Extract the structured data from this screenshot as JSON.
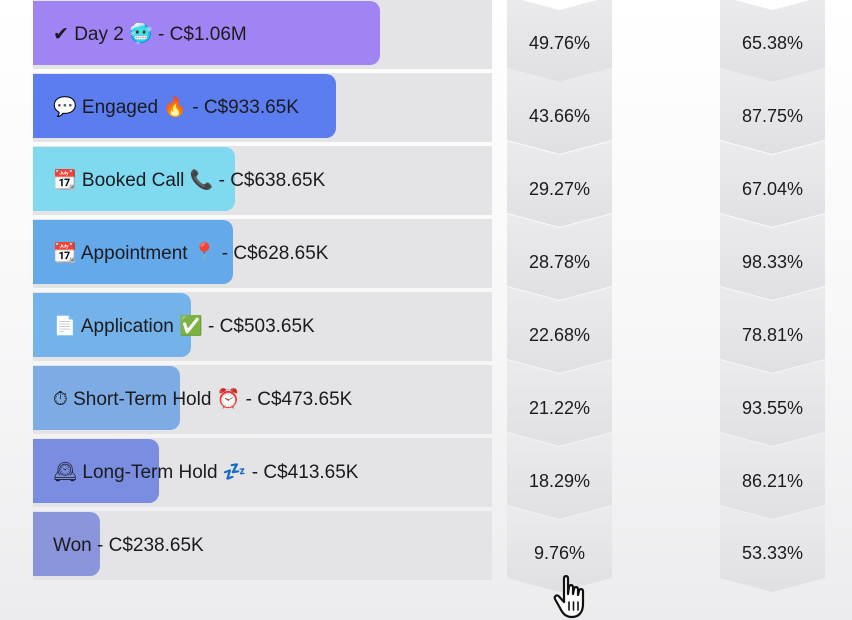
{
  "funnel": {
    "stages": [
      {
        "label": "✔ Day 2 🥶 - C$1.06M",
        "bar_fraction": 0.755,
        "color": "#a184f3"
      },
      {
        "label": "💬 Engaged 🔥 - C$933.65K",
        "bar_fraction": 0.66,
        "color": "#5b7df0"
      },
      {
        "label": "📆 Booked Call 📞 - C$638.65K",
        "bar_fraction": 0.44,
        "color": "#7fd9ef"
      },
      {
        "label": "📆 Appointment 📍 - C$628.65K",
        "bar_fraction": 0.435,
        "color": "#64a9ea"
      },
      {
        "label": "📄 Application ✅ - C$503.65K",
        "bar_fraction": 0.345,
        "color": "#73b3e9"
      },
      {
        "label": "⏱ Short-Term Hold ⏰ - C$473.65K",
        "bar_fraction": 0.32,
        "color": "#7dabe4"
      },
      {
        "label": "🕰 Long-Term Hold 💤 - C$413.65K",
        "bar_fraction": 0.275,
        "color": "#7b8de0"
      },
      {
        "label": "Won - C$238.65K",
        "bar_fraction": 0.145,
        "color": "#8a95dc"
      }
    ]
  },
  "percent_columns": {
    "overall": [
      "49.76%",
      "43.66%",
      "29.27%",
      "28.78%",
      "22.68%",
      "21.22%",
      "18.29%",
      "9.76%"
    ],
    "step": [
      "65.38%",
      "87.75%",
      "67.04%",
      "98.33%",
      "78.81%",
      "93.55%",
      "86.21%",
      "53.33%"
    ]
  }
}
